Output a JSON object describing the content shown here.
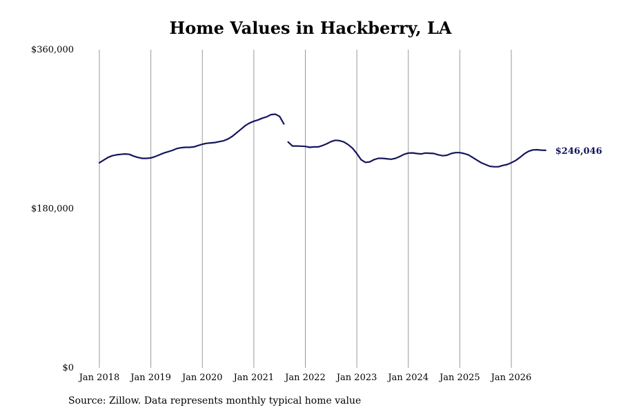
{
  "chart_data": {
    "type": "line",
    "title": "Home Values in Hackberry, LA",
    "ylim": [
      0,
      360000
    ],
    "y_ticks": [
      {
        "value": 360000,
        "label": "$360,000"
      },
      {
        "value": 180000,
        "label": "$180,000"
      },
      {
        "value": 0,
        "label": "$0"
      }
    ],
    "x_ticks": [
      {
        "value": 2018.0,
        "label": "Jan 2018"
      },
      {
        "value": 2019.0,
        "label": "Jan 2019"
      },
      {
        "value": 2020.0,
        "label": "Jan 2020"
      },
      {
        "value": 2021.0,
        "label": "Jan 2021"
      },
      {
        "value": 2022.0,
        "label": "Jan 2022"
      },
      {
        "value": 2023.0,
        "label": "Jan 2023"
      },
      {
        "value": 2024.0,
        "label": "Jan 2024"
      },
      {
        "value": 2025.0,
        "label": "Jan 2025"
      },
      {
        "value": 2026.0,
        "label": "Jan 2026"
      }
    ],
    "xlim": [
      2017.8,
      2026.9
    ],
    "grid": "vertical",
    "line_color": "#14145e",
    "grid_color": "#999999",
    "end_label": "$246,046",
    "series": [
      {
        "segments": [
          [
            [
              2018.0,
              232000
            ],
            [
              2018.083,
              235000
            ],
            [
              2018.167,
              238000
            ],
            [
              2018.25,
              240000
            ],
            [
              2018.333,
              241000
            ],
            [
              2018.417,
              241500
            ],
            [
              2018.5,
              242000
            ],
            [
              2018.583,
              241500
            ],
            [
              2018.667,
              239500
            ],
            [
              2018.75,
              238000
            ],
            [
              2018.833,
              237000
            ],
            [
              2018.917,
              237000
            ],
            [
              2019.0,
              237500
            ],
            [
              2019.083,
              239000
            ],
            [
              2019.167,
              241000
            ],
            [
              2019.25,
              243000
            ],
            [
              2019.333,
              244500
            ],
            [
              2019.417,
              246000
            ],
            [
              2019.5,
              248000
            ],
            [
              2019.583,
              249000
            ],
            [
              2019.667,
              249500
            ],
            [
              2019.75,
              249500
            ],
            [
              2019.833,
              250000
            ],
            [
              2019.917,
              251500
            ],
            [
              2020.0,
              253000
            ],
            [
              2020.083,
              254000
            ],
            [
              2020.167,
              254500
            ],
            [
              2020.25,
              255000
            ],
            [
              2020.333,
              256000
            ],
            [
              2020.417,
              257000
            ],
            [
              2020.5,
              259000
            ],
            [
              2020.583,
              262000
            ],
            [
              2020.667,
              266000
            ],
            [
              2020.75,
              270000
            ],
            [
              2020.833,
              274000
            ],
            [
              2020.917,
              277000
            ],
            [
              2021.0,
              279000
            ],
            [
              2021.083,
              280500
            ],
            [
              2021.167,
              282500
            ],
            [
              2021.25,
              284000
            ],
            [
              2021.333,
              286500
            ],
            [
              2021.417,
              287000
            ],
            [
              2021.5,
              284500
            ],
            [
              2021.583,
              276000
            ]
          ],
          [
            [
              2021.667,
              255500
            ],
            [
              2021.75,
              251000
            ],
            [
              2021.833,
              251000
            ],
            [
              2021.917,
              250800
            ],
            [
              2022.0,
              250500
            ],
            [
              2022.083,
              249500
            ],
            [
              2022.167,
              250000
            ],
            [
              2022.25,
              250000
            ],
            [
              2022.333,
              251500
            ],
            [
              2022.417,
              253500
            ],
            [
              2022.5,
              256000
            ],
            [
              2022.583,
              257500
            ],
            [
              2022.667,
              257000
            ],
            [
              2022.75,
              255500
            ],
            [
              2022.833,
              252500
            ],
            [
              2022.917,
              248500
            ],
            [
              2023.0,
              242500
            ],
            [
              2023.083,
              235500
            ],
            [
              2023.167,
              232500
            ],
            [
              2023.25,
              233000
            ],
            [
              2023.333,
              235500
            ],
            [
              2023.417,
              237000
            ],
            [
              2023.5,
              237000
            ],
            [
              2023.583,
              236500
            ],
            [
              2023.667,
              236000
            ],
            [
              2023.75,
              237000
            ],
            [
              2023.833,
              239000
            ],
            [
              2023.917,
              241500
            ],
            [
              2024.0,
              243000
            ],
            [
              2024.083,
              243200
            ],
            [
              2024.167,
              242500
            ],
            [
              2024.25,
              242000
            ],
            [
              2024.333,
              243000
            ],
            [
              2024.417,
              242800
            ],
            [
              2024.5,
              242500
            ],
            [
              2024.583,
              241000
            ],
            [
              2024.667,
              240000
            ],
            [
              2024.75,
              240500
            ],
            [
              2024.833,
              242500
            ],
            [
              2024.917,
              243500
            ],
            [
              2025.0,
              243500
            ],
            [
              2025.083,
              242500
            ],
            [
              2025.167,
              241000
            ],
            [
              2025.25,
              238000
            ],
            [
              2025.333,
              235000
            ],
            [
              2025.417,
              232000
            ],
            [
              2025.5,
              230000
            ],
            [
              2025.583,
              228000
            ],
            [
              2025.667,
              227500
            ],
            [
              2025.75,
              227500
            ],
            [
              2025.833,
              229000
            ],
            [
              2025.917,
              230000
            ],
            [
              2026.0,
              232000
            ],
            [
              2026.083,
              234500
            ],
            [
              2026.167,
              238000
            ],
            [
              2026.25,
              242000
            ],
            [
              2026.333,
              245000
            ],
            [
              2026.417,
              246500
            ],
            [
              2026.5,
              246800
            ],
            [
              2026.583,
              246300
            ],
            [
              2026.667,
              246046
            ]
          ]
        ]
      }
    ]
  },
  "source": "Source: Zillow. Data represents monthly typical home value"
}
